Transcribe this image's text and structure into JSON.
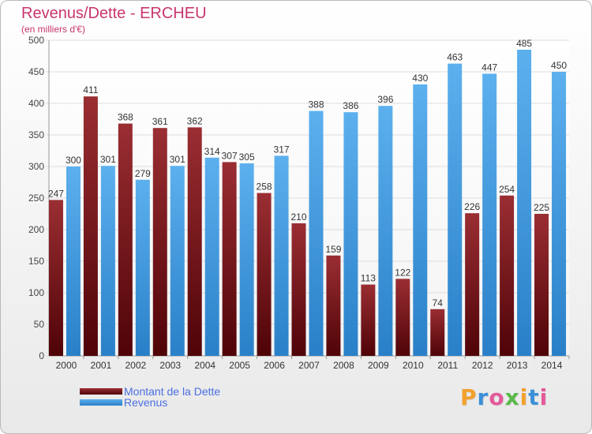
{
  "chart_data": {
    "type": "bar",
    "title": "Revenus/Dette - ERCHEU",
    "subtitle": "(en milliers d'€)",
    "categories": [
      "2000",
      "2001",
      "2002",
      "2003",
      "2004",
      "2005",
      "2006",
      "2007",
      "2008",
      "2009",
      "2010",
      "2011",
      "2012",
      "2013",
      "2014"
    ],
    "series": [
      {
        "name": "Montant de la Dette",
        "color": "#7a1418",
        "values": [
          247,
          411,
          368,
          361,
          362,
          307,
          258,
          210,
          159,
          113,
          122,
          74,
          226,
          254,
          225
        ]
      },
      {
        "name": "Revenus",
        "color": "#3d96dd",
        "values": [
          300,
          301,
          279,
          301,
          314,
          305,
          317,
          388,
          386,
          396,
          430,
          463,
          447,
          485,
          450
        ]
      }
    ],
    "ylim": [
      0,
      500
    ],
    "yticks": [
      0,
      50,
      100,
      150,
      200,
      250,
      300,
      350,
      400,
      450,
      500
    ],
    "grid": true,
    "legend_position": "bottom-left"
  },
  "brand": {
    "letters": [
      "P",
      "r",
      "o",
      "x",
      "i",
      "t",
      "i"
    ],
    "colors": [
      "#f2a12e",
      "#3b8fd8",
      "#e35a9a",
      "#5bb84a",
      "#f2a12e",
      "#3b8fd8",
      "#e35a9a"
    ]
  }
}
